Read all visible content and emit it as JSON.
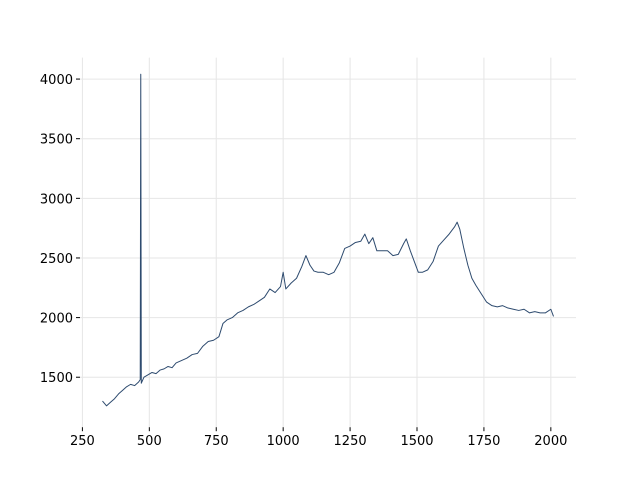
{
  "chart_data": {
    "type": "line",
    "color": "#2e4b6f",
    "grid": true,
    "x": [
      325,
      340,
      355,
      370,
      385,
      400,
      415,
      430,
      445,
      460,
      466,
      468,
      470,
      480,
      495,
      510,
      525,
      540,
      555,
      570,
      585,
      600,
      620,
      640,
      660,
      680,
      700,
      720,
      740,
      760,
      775,
      790,
      810,
      830,
      850,
      870,
      890,
      910,
      930,
      950,
      970,
      990,
      1000,
      1010,
      1030,
      1050,
      1070,
      1085,
      1100,
      1115,
      1130,
      1150,
      1170,
      1190,
      1210,
      1230,
      1250,
      1270,
      1290,
      1305,
      1320,
      1335,
      1350,
      1370,
      1390,
      1410,
      1430,
      1450,
      1460,
      1475,
      1490,
      1505,
      1520,
      1540,
      1560,
      1580,
      1600,
      1620,
      1640,
      1650,
      1660,
      1675,
      1690,
      1705,
      1720,
      1740,
      1760,
      1780,
      1800,
      1820,
      1840,
      1860,
      1880,
      1900,
      1920,
      1940,
      1960,
      1980,
      2000,
      2010
    ],
    "values": [
      1300,
      1260,
      1290,
      1320,
      1360,
      1390,
      1420,
      1440,
      1430,
      1460,
      1480,
      4040,
      1450,
      1500,
      1520,
      1540,
      1530,
      1560,
      1570,
      1590,
      1580,
      1620,
      1640,
      1660,
      1690,
      1700,
      1760,
      1800,
      1810,
      1840,
      1950,
      1980,
      2000,
      2040,
      2060,
      2090,
      2110,
      2140,
      2170,
      2240,
      2210,
      2260,
      2380,
      2240,
      2290,
      2330,
      2430,
      2520,
      2440,
      2390,
      2380,
      2380,
      2360,
      2380,
      2460,
      2580,
      2600,
      2630,
      2640,
      2700,
      2620,
      2670,
      2560,
      2560,
      2560,
      2520,
      2530,
      2620,
      2660,
      2560,
      2470,
      2380,
      2380,
      2400,
      2470,
      2600,
      2650,
      2700,
      2760,
      2800,
      2740,
      2580,
      2440,
      2330,
      2270,
      2200,
      2130,
      2100,
      2090,
      2100,
      2080,
      2070,
      2060,
      2070,
      2040,
      2050,
      2040,
      2040,
      2070,
      2010
    ],
    "xlim": [
      241,
      2094
    ],
    "ylim": [
      1081,
      4180
    ],
    "xticks": [
      250,
      500,
      750,
      1000,
      1250,
      1500,
      1750,
      2000
    ],
    "yticks": [
      1500,
      2000,
      2500,
      3000,
      3500,
      4000
    ]
  }
}
